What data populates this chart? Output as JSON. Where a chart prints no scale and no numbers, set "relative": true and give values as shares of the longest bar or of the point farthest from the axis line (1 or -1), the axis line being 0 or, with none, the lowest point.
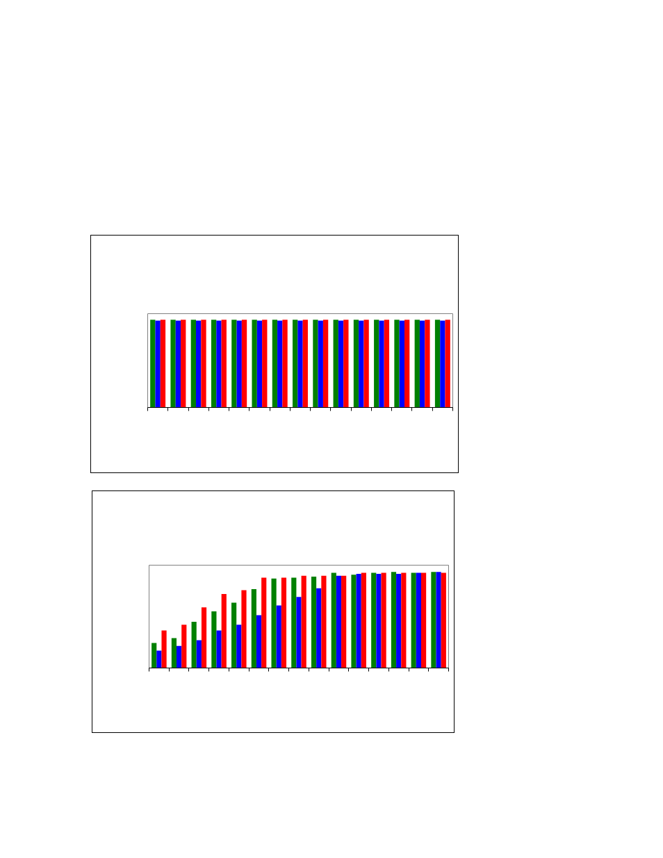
{
  "chart_data": [
    {
      "type": "bar",
      "relative": true,
      "categories": [
        null,
        null,
        null,
        null,
        null,
        null,
        null,
        null,
        null,
        null,
        null,
        null,
        null,
        null,
        null
      ],
      "series": [
        {
          "color": "#008000",
          "values": [
            1,
            1,
            1,
            1,
            1,
            1,
            1,
            1,
            1,
            1,
            1,
            1,
            1,
            1,
            1
          ]
        },
        {
          "color": "#0000ff",
          "values": [
            0.99,
            0.99,
            0.99,
            0.99,
            0.99,
            0.99,
            0.99,
            0.99,
            0.99,
            0.99,
            0.99,
            0.99,
            0.99,
            0.99,
            0.99
          ]
        },
        {
          "color": "#ff0000",
          "values": [
            1,
            1,
            1,
            1,
            1,
            1,
            1,
            1,
            1,
            1,
            1,
            1,
            1,
            1,
            1
          ]
        }
      ]
    },
    {
      "type": "bar",
      "relative": true,
      "categories": [
        null,
        null,
        null,
        null,
        null,
        null,
        null,
        null,
        null,
        null,
        null,
        null,
        null,
        null,
        null
      ],
      "series": [
        {
          "color": "#008000",
          "values": [
            0.26,
            0.31,
            0.48,
            0.59,
            0.68,
            0.82,
            0.93,
            0.94,
            0.95,
            0.99,
            0.97,
            0.99,
            1,
            0.99,
            1
          ]
        },
        {
          "color": "#0000ff",
          "values": [
            0.18,
            0.23,
            0.29,
            0.39,
            0.45,
            0.55,
            0.65,
            0.74,
            0.83,
            0.96,
            0.98,
            0.98,
            0.98,
            0.99,
            1
          ]
        },
        {
          "color": "#ff0000",
          "values": [
            0.39,
            0.45,
            0.63,
            0.77,
            0.81,
            0.94,
            0.94,
            0.96,
            0.96,
            0.96,
            0.99,
            0.99,
            0.99,
            0.99,
            0.99
          ]
        }
      ]
    }
  ]
}
